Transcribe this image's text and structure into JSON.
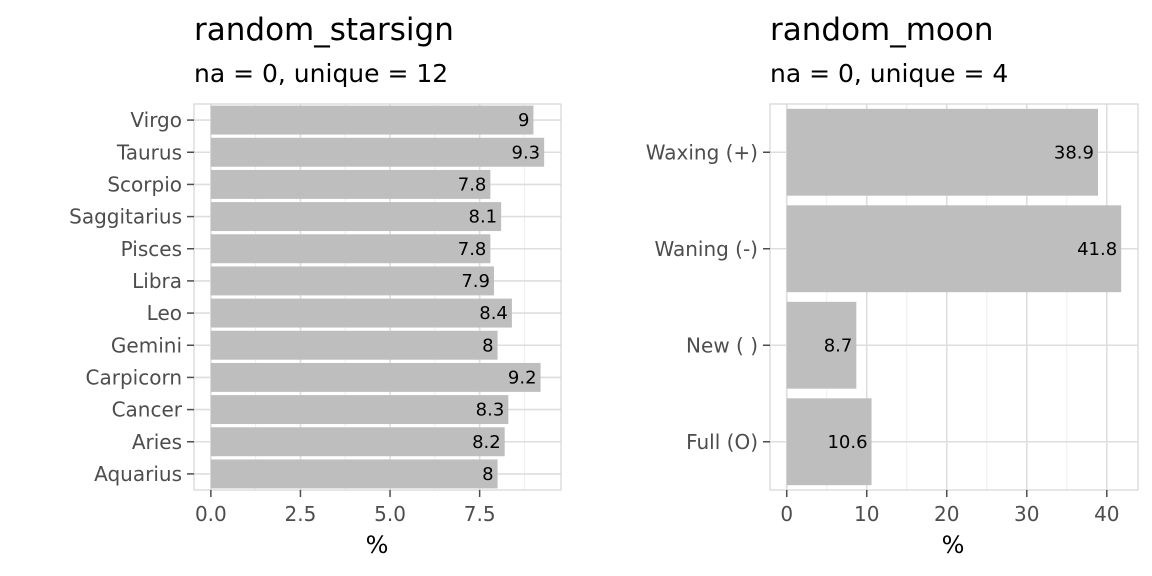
{
  "colors": {
    "bar_fill": "#bebebe",
    "grid_major": "#dedede",
    "grid_minor": "#eeeeee",
    "panel_border": "#d4d4d4",
    "tick": "#4d4d4d"
  },
  "chart_data": [
    {
      "type": "bar",
      "orientation": "horizontal",
      "title": "random_starsign",
      "subtitle": "na = 0, unique = 12",
      "xlabel": "%",
      "ylabel": "",
      "categories": [
        "Virgo",
        "Taurus",
        "Scorpio",
        "Saggitarius",
        "Pisces",
        "Libra",
        "Leo",
        "Gemini",
        "Carpicorn",
        "Cancer",
        "Aries",
        "Aquarius"
      ],
      "values": [
        9,
        9.3,
        7.8,
        8.1,
        7.8,
        7.9,
        8.4,
        8,
        9.2,
        8.3,
        8.2,
        8
      ],
      "data_labels": [
        "9",
        "9.3",
        "7.8",
        "8.1",
        "7.8",
        "7.9",
        "8.4",
        "8",
        "9.2",
        "8.3",
        "8.2",
        "8"
      ],
      "xlim": [
        -0.47,
        9.77
      ],
      "xticks": [
        0,
        2.5,
        5,
        7.5
      ],
      "xtick_labels": [
        "0.0",
        "2.5",
        "5.0",
        "7.5"
      ],
      "grid": true
    },
    {
      "type": "bar",
      "orientation": "horizontal",
      "title": "random_moon",
      "subtitle": "na = 0, unique = 4",
      "xlabel": "%",
      "ylabel": "",
      "categories": [
        "Waxing (+)",
        "Waning (-)",
        "New ( )",
        "Full (O)"
      ],
      "values": [
        38.9,
        41.8,
        8.7,
        10.6
      ],
      "data_labels": [
        "38.9",
        "41.8",
        "8.7",
        "10.6"
      ],
      "xlim": [
        -2.09,
        43.9
      ],
      "xticks": [
        0,
        10,
        20,
        30,
        40
      ],
      "xtick_labels": [
        "0",
        "10",
        "20",
        "30",
        "40"
      ],
      "grid": true
    }
  ]
}
